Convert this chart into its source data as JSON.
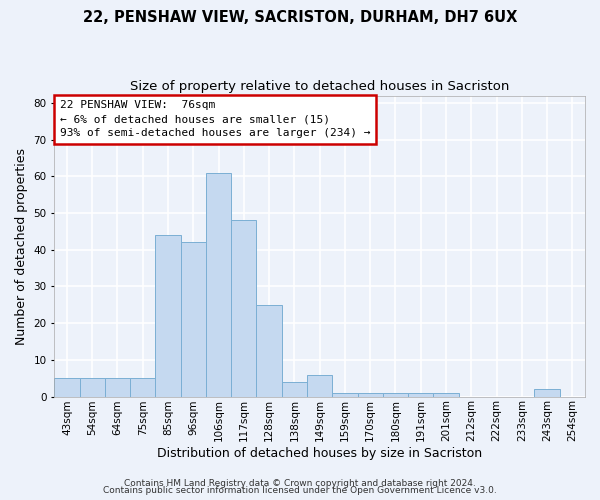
{
  "title1": "22, PENSHAW VIEW, SACRISTON, DURHAM, DH7 6UX",
  "title2": "Size of property relative to detached houses in Sacriston",
  "xlabel": "Distribution of detached houses by size in Sacriston",
  "ylabel": "Number of detached properties",
  "categories": [
    "43sqm",
    "54sqm",
    "64sqm",
    "75sqm",
    "85sqm",
    "96sqm",
    "106sqm",
    "117sqm",
    "128sqm",
    "138sqm",
    "149sqm",
    "159sqm",
    "170sqm",
    "180sqm",
    "191sqm",
    "201sqm",
    "212sqm",
    "222sqm",
    "233sqm",
    "243sqm",
    "254sqm"
  ],
  "values": [
    5,
    5,
    5,
    5,
    44,
    42,
    61,
    48,
    25,
    4,
    6,
    1,
    1,
    1,
    1,
    1,
    0,
    0,
    0,
    2,
    0
  ],
  "bar_color": "#c5d9f0",
  "bar_edge_color": "#7bafd4",
  "annotation_line1": "22 PENSHAW VIEW:  76sqm",
  "annotation_line2": "← 6% of detached houses are smaller (15)",
  "annotation_line3": "93% of semi-detached houses are larger (234) →",
  "annotation_box_color": "#ffffff",
  "annotation_box_edge": "#cc0000",
  "ylim": [
    0,
    82
  ],
  "yticks": [
    0,
    10,
    20,
    30,
    40,
    50,
    60,
    70,
    80
  ],
  "footer1": "Contains HM Land Registry data © Crown copyright and database right 2024.",
  "footer2": "Contains public sector information licensed under the Open Government Licence v3.0.",
  "background_color": "#edf2fa",
  "grid_color": "#ffffff",
  "title1_fontsize": 10.5,
  "title2_fontsize": 9.5,
  "ylabel_fontsize": 9,
  "xlabel_fontsize": 9,
  "tick_fontsize": 7.5,
  "annotation_fontsize": 8,
  "footer_fontsize": 6.5
}
